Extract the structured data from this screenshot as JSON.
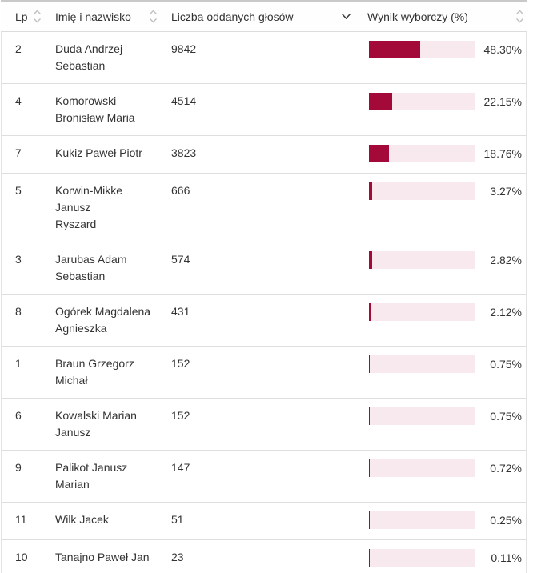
{
  "colors": {
    "bar_fill": "#a30939",
    "bar_track": "#f7e9ee",
    "header_text": "#333333",
    "body_text": "#333333",
    "inactive_sort_icon": "#bfbfbf",
    "active_sort_icon": "#3c3c3c"
  },
  "table": {
    "columns": [
      {
        "id": "lp",
        "label": "Lp",
        "sort_state": "unsorted"
      },
      {
        "id": "name",
        "label": "Imię i nazwisko",
        "sort_state": "unsorted"
      },
      {
        "id": "votes",
        "label": "Liczba oddanych głosów",
        "sort_state": "descending"
      },
      {
        "id": "result",
        "label": "Wynik wyborczy (%)",
        "sort_state": "unsorted"
      }
    ],
    "rows": [
      {
        "lp": "2",
        "name": "Duda Andrzej\nSebastian",
        "votes": "9842",
        "percent": 48.3,
        "percent_label": "48.30%"
      },
      {
        "lp": "4",
        "name": "Komorowski\nBronisław Maria",
        "votes": "4514",
        "percent": 22.15,
        "percent_label": "22.15%"
      },
      {
        "lp": "7",
        "name": "Kukiz Paweł Piotr",
        "votes": "3823",
        "percent": 18.76,
        "percent_label": "18.76%"
      },
      {
        "lp": "5",
        "name": "Korwin-Mikke Janusz\nRyszard",
        "votes": "666",
        "percent": 3.27,
        "percent_label": "3.27%"
      },
      {
        "lp": "3",
        "name": "Jarubas Adam\nSebastian",
        "votes": "574",
        "percent": 2.82,
        "percent_label": "2.82%"
      },
      {
        "lp": "8",
        "name": "Ogórek Magdalena\nAgnieszka",
        "votes": "431",
        "percent": 2.12,
        "percent_label": "2.12%"
      },
      {
        "lp": "1",
        "name": "Braun Grzegorz\nMichał",
        "votes": "152",
        "percent": 0.75,
        "percent_label": "0.75%"
      },
      {
        "lp": "6",
        "name": "Kowalski Marian\nJanusz",
        "votes": "152",
        "percent": 0.75,
        "percent_label": "0.75%"
      },
      {
        "lp": "9",
        "name": "Palikot Janusz\nMarian",
        "votes": "147",
        "percent": 0.72,
        "percent_label": "0.72%"
      },
      {
        "lp": "11",
        "name": "Wilk Jacek",
        "votes": "51",
        "percent": 0.25,
        "percent_label": "0.25%"
      },
      {
        "lp": "10",
        "name": "Tanajno Paweł Jan",
        "votes": "23",
        "percent": 0.11,
        "percent_label": "0.11%"
      }
    ]
  },
  "chart_data": {
    "type": "bar",
    "orientation": "horizontal",
    "categories": [
      "Duda Andrzej Sebastian",
      "Komorowski Bronisław Maria",
      "Kukiz Paweł Piotr",
      "Korwin-Mikke Janusz Ryszard",
      "Jarubas Adam Sebastian",
      "Ogórek Magdalena Agnieszka",
      "Braun Grzegorz Michał",
      "Kowalski Marian Janusz",
      "Palikot Janusz Marian",
      "Wilk Jacek",
      "Tanajno Paweł Jan"
    ],
    "series": [
      {
        "name": "Liczba oddanych głosów",
        "values": [
          9842,
          4514,
          3823,
          666,
          574,
          431,
          152,
          152,
          147,
          51,
          23
        ]
      },
      {
        "name": "Wynik wyborczy (%)",
        "values": [
          48.3,
          22.15,
          18.76,
          3.27,
          2.82,
          2.12,
          0.75,
          0.75,
          0.72,
          0.25,
          0.11
        ]
      }
    ],
    "xlabel": "Wynik wyborczy (%)",
    "xlim": [
      0,
      100
    ],
    "grid": false,
    "legend": "none"
  }
}
